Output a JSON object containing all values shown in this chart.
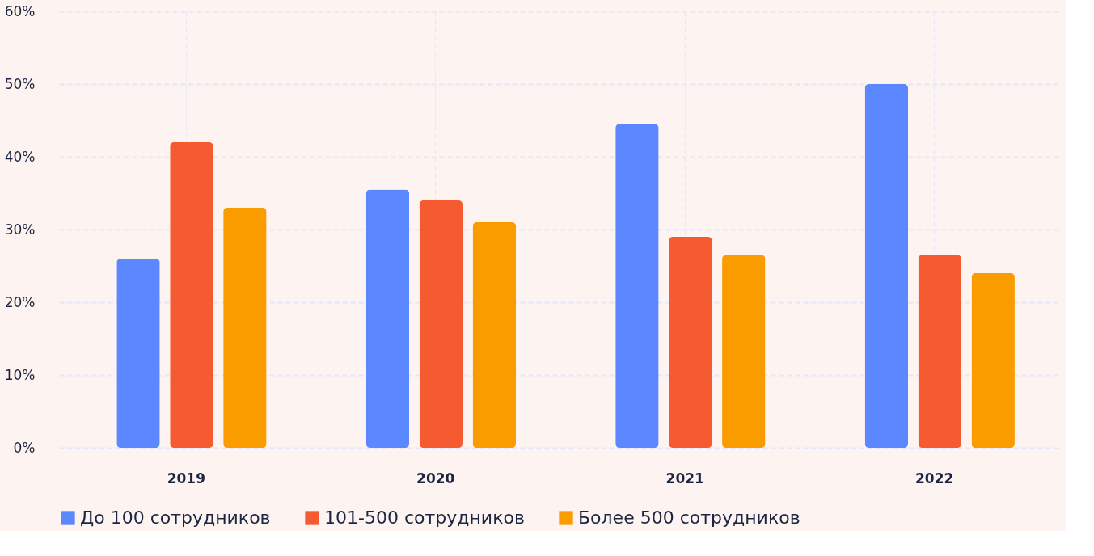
{
  "chart_data": {
    "type": "bar",
    "categories": [
      "2019",
      "2020",
      "2021",
      "2022"
    ],
    "series": [
      {
        "name": "До 100 сотрудников",
        "color": "#5b87ff",
        "values": [
          26,
          35.5,
          44.5,
          50
        ]
      },
      {
        "name": "101-500 сотрудников",
        "color": "#f55a30",
        "values": [
          42,
          34,
          29,
          26.5
        ]
      },
      {
        "name": "Более 500 сотрудников",
        "color": "#fa9b00",
        "values": [
          33,
          31,
          26.5,
          24
        ]
      }
    ],
    "ylim": [
      0,
      60
    ],
    "yticks": [
      {
        "value": 0,
        "label": "0%"
      },
      {
        "value": 10,
        "label": "10%"
      },
      {
        "value": 20,
        "label": "20%"
      },
      {
        "value": 30,
        "label": "30%"
      },
      {
        "value": 40,
        "label": "40%"
      },
      {
        "value": 50,
        "label": "50%"
      },
      {
        "value": 60,
        "label": "60%"
      }
    ],
    "grid": true,
    "legend": "bottom left"
  }
}
